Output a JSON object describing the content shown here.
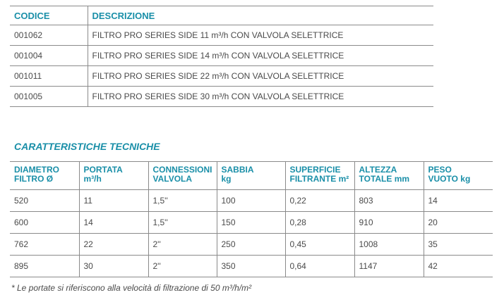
{
  "products_table": {
    "headers": [
      "CODICE",
      "DESCRIZIONE"
    ],
    "rows": [
      [
        "001062",
        "FILTRO PRO SERIES SIDE 11 m³/h CON VALVOLA SELETTRICE"
      ],
      [
        "001004",
        "FILTRO PRO SERIES SIDE 14 m³/h CON VALVOLA SELETTRICE"
      ],
      [
        "001011",
        "FILTRO PRO SERIES SIDE 22 m³/h CON VALVOLA SELETTRICE"
      ],
      [
        "001005",
        "FILTRO PRO SERIES SIDE 30 m³/h CON VALVOLA SELETTRICE"
      ]
    ]
  },
  "specs_title": "CARATTERISTICHE TECNICHE",
  "specs_table": {
    "headers": [
      [
        "DIAMETRO",
        "FILTRO Ø"
      ],
      [
        "PORTATA",
        "m³/h"
      ],
      [
        "CONNESSIONI",
        "VALVOLA"
      ],
      [
        "SABBIA",
        "kg"
      ],
      [
        "SUPERFICIE",
        "FILTRANTE m²"
      ],
      [
        "ALTEZZA",
        "TOTALE mm"
      ],
      [
        "PESO",
        "VUOTO kg"
      ]
    ],
    "rows": [
      [
        "520",
        "11",
        "1,5''",
        "100",
        "0,22",
        "803",
        "14"
      ],
      [
        "600",
        "14",
        "1,5''",
        "150",
        "0,28",
        "910",
        "20"
      ],
      [
        "762",
        "22",
        "2''",
        "250",
        "0,45",
        "1008",
        "35"
      ],
      [
        "895",
        "30",
        "2''",
        "350",
        "0,64",
        "1147",
        "42"
      ]
    ]
  },
  "footnote": "* Le portate si riferiscono alla velocità di filtrazione di 50 m³/h/m²",
  "colors": {
    "accent": "#1a8fa8",
    "text": "#4a4a4a",
    "rule": "#8a8a8a"
  }
}
